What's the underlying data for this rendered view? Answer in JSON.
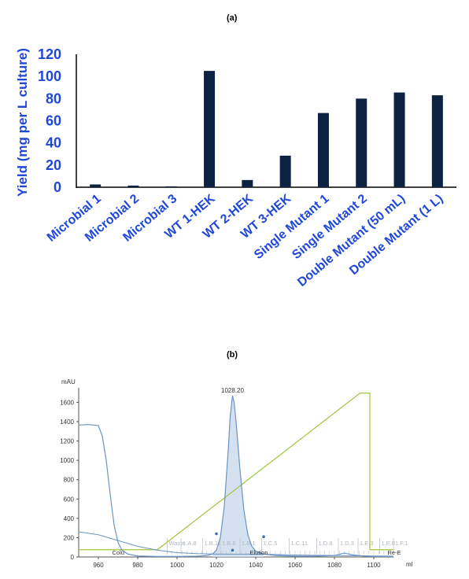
{
  "panel_a_label": "(a)",
  "panel_b_label": "(b)",
  "colors": {
    "bar": "#0d2240",
    "label_blue": "#1f47d8",
    "uv_line": "#6b94c2",
    "uv_fill": "#c9d9ec",
    "gradient_line": "#9dc63a",
    "marker_line": "#c0c6cc",
    "marker_text": "#b0b6bc",
    "axis": "#555555"
  },
  "chart_data": [
    {
      "type": "bar",
      "title": "",
      "xlabel": "",
      "ylabel": "Yield (mg per L culture)",
      "ylim": [
        0,
        120
      ],
      "yticks": [
        0,
        20,
        40,
        60,
        80,
        100,
        120
      ],
      "categories": [
        "Microbial 1",
        "Microbial 2",
        "Microbial 3",
        "WT 1-HEK",
        "WT 2-HEK",
        "WT 3-HEK",
        "Single Mutant 1",
        "Single Mutant 2",
        "Double Mutant (50 mL)",
        "Double Mutant (1 L)"
      ],
      "values": [
        2.5,
        1.5,
        0.8,
        105,
        6.5,
        28.5,
        67,
        80,
        85.5,
        83
      ],
      "grid": false,
      "legend": "none"
    },
    {
      "type": "line",
      "title": "",
      "xlabel": "ml",
      "ylabel": "mAU",
      "xlim": [
        950,
        1110
      ],
      "ylim": [
        0,
        1750
      ],
      "xticks": [
        960,
        980,
        1000,
        1020,
        1040,
        1060,
        1080,
        1100
      ],
      "yticks": [
        0,
        200,
        400,
        600,
        800,
        1000,
        1200,
        1400,
        1600
      ],
      "peak_label": "1028.20",
      "series": [
        {
          "role": "UV absorbance",
          "x": [
            950,
            955,
            960,
            962,
            964,
            966,
            968,
            970,
            972,
            975,
            980,
            990,
            1000,
            1010,
            1015,
            1018,
            1020,
            1022,
            1024,
            1026,
            1027,
            1028.2,
            1029,
            1030,
            1032,
            1034,
            1036,
            1038,
            1040,
            1044,
            1050,
            1060,
            1070,
            1080,
            1085,
            1090,
            1095,
            1100,
            1110
          ],
          "y": [
            1365,
            1370,
            1360,
            1250,
            1000,
            650,
            330,
            150,
            70,
            30,
            10,
            5,
            5,
            8,
            15,
            30,
            70,
            200,
            520,
            1100,
            1450,
            1670,
            1600,
            1400,
            900,
            480,
            230,
            110,
            60,
            30,
            15,
            8,
            8,
            15,
            40,
            20,
            10,
            5,
            5
          ]
        },
        {
          "role": "UV baseline",
          "x": [
            950,
            960,
            970,
            980,
            990,
            1000,
            1010,
            1020,
            1030,
            1040,
            1050,
            1060,
            1080,
            1100,
            1110
          ],
          "y": [
            260,
            230,
            170,
            110,
            70,
            45,
            35,
            30,
            28,
            30,
            25,
            20,
            15,
            10,
            8
          ]
        },
        {
          "role": "Gradient",
          "x": [
            950,
            990,
            1093,
            1098,
            1098,
            1110
          ],
          "y": [
            75,
            75,
            1695,
            1695,
            75,
            75
          ]
        }
      ],
      "fraction_markers": [
        {
          "x": 995,
          "label": "Waste"
        },
        {
          "x": 1002,
          "label": "1.A.8"
        },
        {
          "x": 1013,
          "label": "1.B.11"
        },
        {
          "x": 1022,
          "label": "1.B.6"
        },
        {
          "x": 1032,
          "label": "1.B.1"
        },
        {
          "x": 1043,
          "label": "1.C.5"
        },
        {
          "x": 1057,
          "label": "1.C.11"
        },
        {
          "x": 1071,
          "label": "1.D.8"
        },
        {
          "x": 1082,
          "label": "1.D.3"
        },
        {
          "x": 1092,
          "label": "1.E.3"
        },
        {
          "x": 1103,
          "label": "1.E.8"
        },
        {
          "x": 1110,
          "label": "1.F.1"
        }
      ],
      "phase_labels": [
        {
          "x": 967,
          "label": "Colu"
        },
        {
          "x": 1037,
          "label": "Elution"
        },
        {
          "x": 1107,
          "label": "Re-E"
        }
      ],
      "grid": false,
      "legend": "none"
    }
  ]
}
